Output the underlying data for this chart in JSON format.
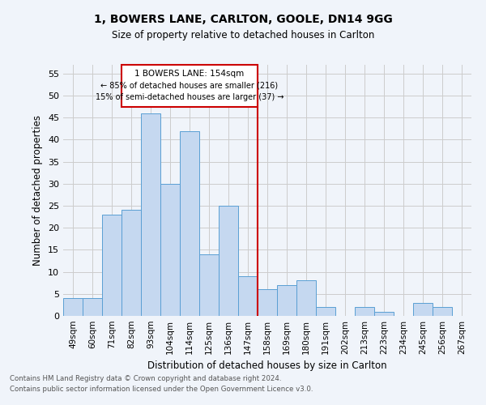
{
  "title1": "1, BOWERS LANE, CARLTON, GOOLE, DN14 9GG",
  "title2": "Size of property relative to detached houses in Carlton",
  "xlabel": "Distribution of detached houses by size in Carlton",
  "ylabel": "Number of detached properties",
  "footer1": "Contains HM Land Registry data © Crown copyright and database right 2024.",
  "footer2": "Contains public sector information licensed under the Open Government Licence v3.0.",
  "categories": [
    "49sqm",
    "60sqm",
    "71sqm",
    "82sqm",
    "93sqm",
    "104sqm",
    "114sqm",
    "125sqm",
    "136sqm",
    "147sqm",
    "158sqm",
    "169sqm",
    "180sqm",
    "191sqm",
    "202sqm",
    "213sqm",
    "223sqm",
    "234sqm",
    "245sqm",
    "256sqm",
    "267sqm"
  ],
  "values": [
    4,
    4,
    23,
    24,
    46,
    30,
    42,
    14,
    25,
    9,
    6,
    7,
    8,
    2,
    0,
    2,
    1,
    0,
    3,
    2,
    0
  ],
  "bar_color": "#c5d8f0",
  "bar_edge_color": "#5a9fd4",
  "vline_x_idx": 9.5,
  "vline_color": "#cc0000",
  "box_text_line1": "1 BOWERS LANE: 154sqm",
  "box_text_line2": "← 85% of detached houses are smaller (216)",
  "box_text_line3": "15% of semi-detached houses are larger (37) →",
  "box_color": "#cc0000",
  "ylim": [
    0,
    57
  ],
  "yticks": [
    0,
    5,
    10,
    15,
    20,
    25,
    30,
    35,
    40,
    45,
    50,
    55
  ],
  "grid_color": "#cccccc",
  "bg_color": "#f0f4fa"
}
